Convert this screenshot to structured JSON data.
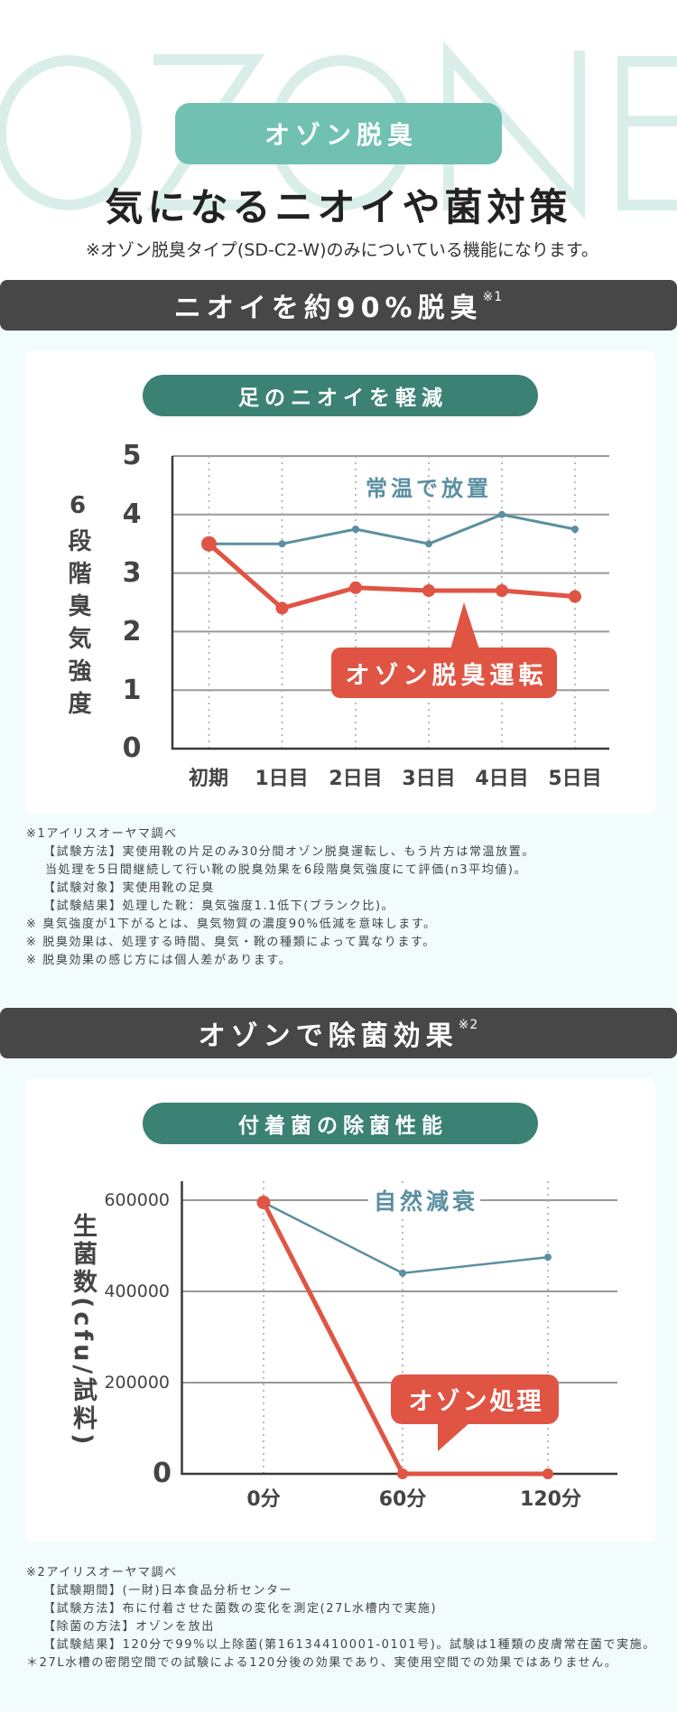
{
  "colors": {
    "watermark": "#daeee9",
    "teal_light": "#70c1b2",
    "teal_dark": "#3b8274",
    "banner_bg": "#474747",
    "section_bg": "#f2fcfc",
    "red": "#e05444",
    "blue": "#5b8fa1",
    "text": "#444444"
  },
  "header": {
    "bg_word": "OZONE",
    "badge": "オゾン脱臭",
    "title": "気になるニオイや菌対策",
    "note": "※オゾン脱臭タイプ(SD-C2-W)のみについている機能になります。"
  },
  "section1": {
    "banner": "ニオイを約90%脱臭",
    "banner_sup": "※1",
    "card_title": "足のニオイを軽減",
    "notes": [
      "※1アイリスオーヤマ調べ",
      "【試験方法】実使用靴の片足のみ30分間オゾン脱臭運転し、もう片方は常温放置。",
      "当処理を5日間継続して行い靴の脱臭効果を6段階臭気強度にて評価(n3平均値)。",
      "【試験対象】実使用靴の足臭",
      "【試験結果】処理した靴：臭気強度1.1低下(ブランク比)。",
      "※ 臭気強度が1下がるとは、臭気物質の濃度90%低減を意味します。",
      "※ 脱臭効果は、処理する時間、臭気・靴の種類によって異なります。",
      "※ 脱臭効果の感じ方には個人差があります。"
    ]
  },
  "section2": {
    "banner": "オゾンで除菌効果",
    "banner_sup": "※2",
    "card_title": "付着菌の除菌性能",
    "notes": [
      "※2アイリスオーヤマ調べ",
      "【試験期間】(一財)日本食品分析センター",
      "【試験方法】布に付着させた菌数の変化を測定(27L水槽内で実施)",
      "【除菌の方法】オゾンを放出",
      "【試験結果】120分で99%以上除菌(第16134410001-0101号)。試験は1種類の皮膚常在菌で実施。",
      "＊27L水槽の密閉空間での試験による120分後の効果であり、実使用空間での効果ではありません。"
    ]
  },
  "chart_data": [
    {
      "type": "line",
      "title": "足のニオイを軽減",
      "xlabel": "",
      "ylabel": "6段階臭気強度",
      "categories": [
        "初期",
        "1日目",
        "2日目",
        "3日目",
        "4日目",
        "5日目"
      ],
      "series": [
        {
          "name": "常温で放置",
          "values": [
            3.5,
            3.5,
            3.75,
            3.5,
            4.0,
            3.75
          ],
          "color": "#5b8fa1"
        },
        {
          "name": "オゾン脱臭運転",
          "values": [
            3.5,
            2.4,
            2.75,
            2.7,
            2.7,
            2.6
          ],
          "color": "#e05444"
        }
      ],
      "yticks": [
        0,
        1,
        2,
        3,
        4,
        5
      ],
      "ytick_labels": [
        "0",
        "1",
        "2",
        "3",
        "4",
        "5"
      ],
      "ylim": [
        0,
        5
      ],
      "grid": true,
      "legend": "inline labels (series name near line; callout box for ozone series)"
    },
    {
      "type": "line",
      "title": "付着菌の除菌性能",
      "xlabel": "",
      "ylabel": "生菌数(cfu/試料)",
      "categories": [
        "0分",
        "60分",
        "120分"
      ],
      "series": [
        {
          "name": "自然減衰",
          "values": [
            595000,
            440000,
            475000
          ],
          "color": "#5b8fa1"
        },
        {
          "name": "オゾン処理",
          "values": [
            595000,
            0,
            0
          ],
          "color": "#e05444"
        }
      ],
      "yticks": [
        0,
        200000,
        400000,
        600000
      ],
      "ytick_labels": [
        "0",
        "200000",
        "400000",
        "600000"
      ],
      "ylim": [
        0,
        640000
      ],
      "grid": true,
      "legend": "inline labels (series name on top gridline; callout box for ozone series)"
    }
  ]
}
